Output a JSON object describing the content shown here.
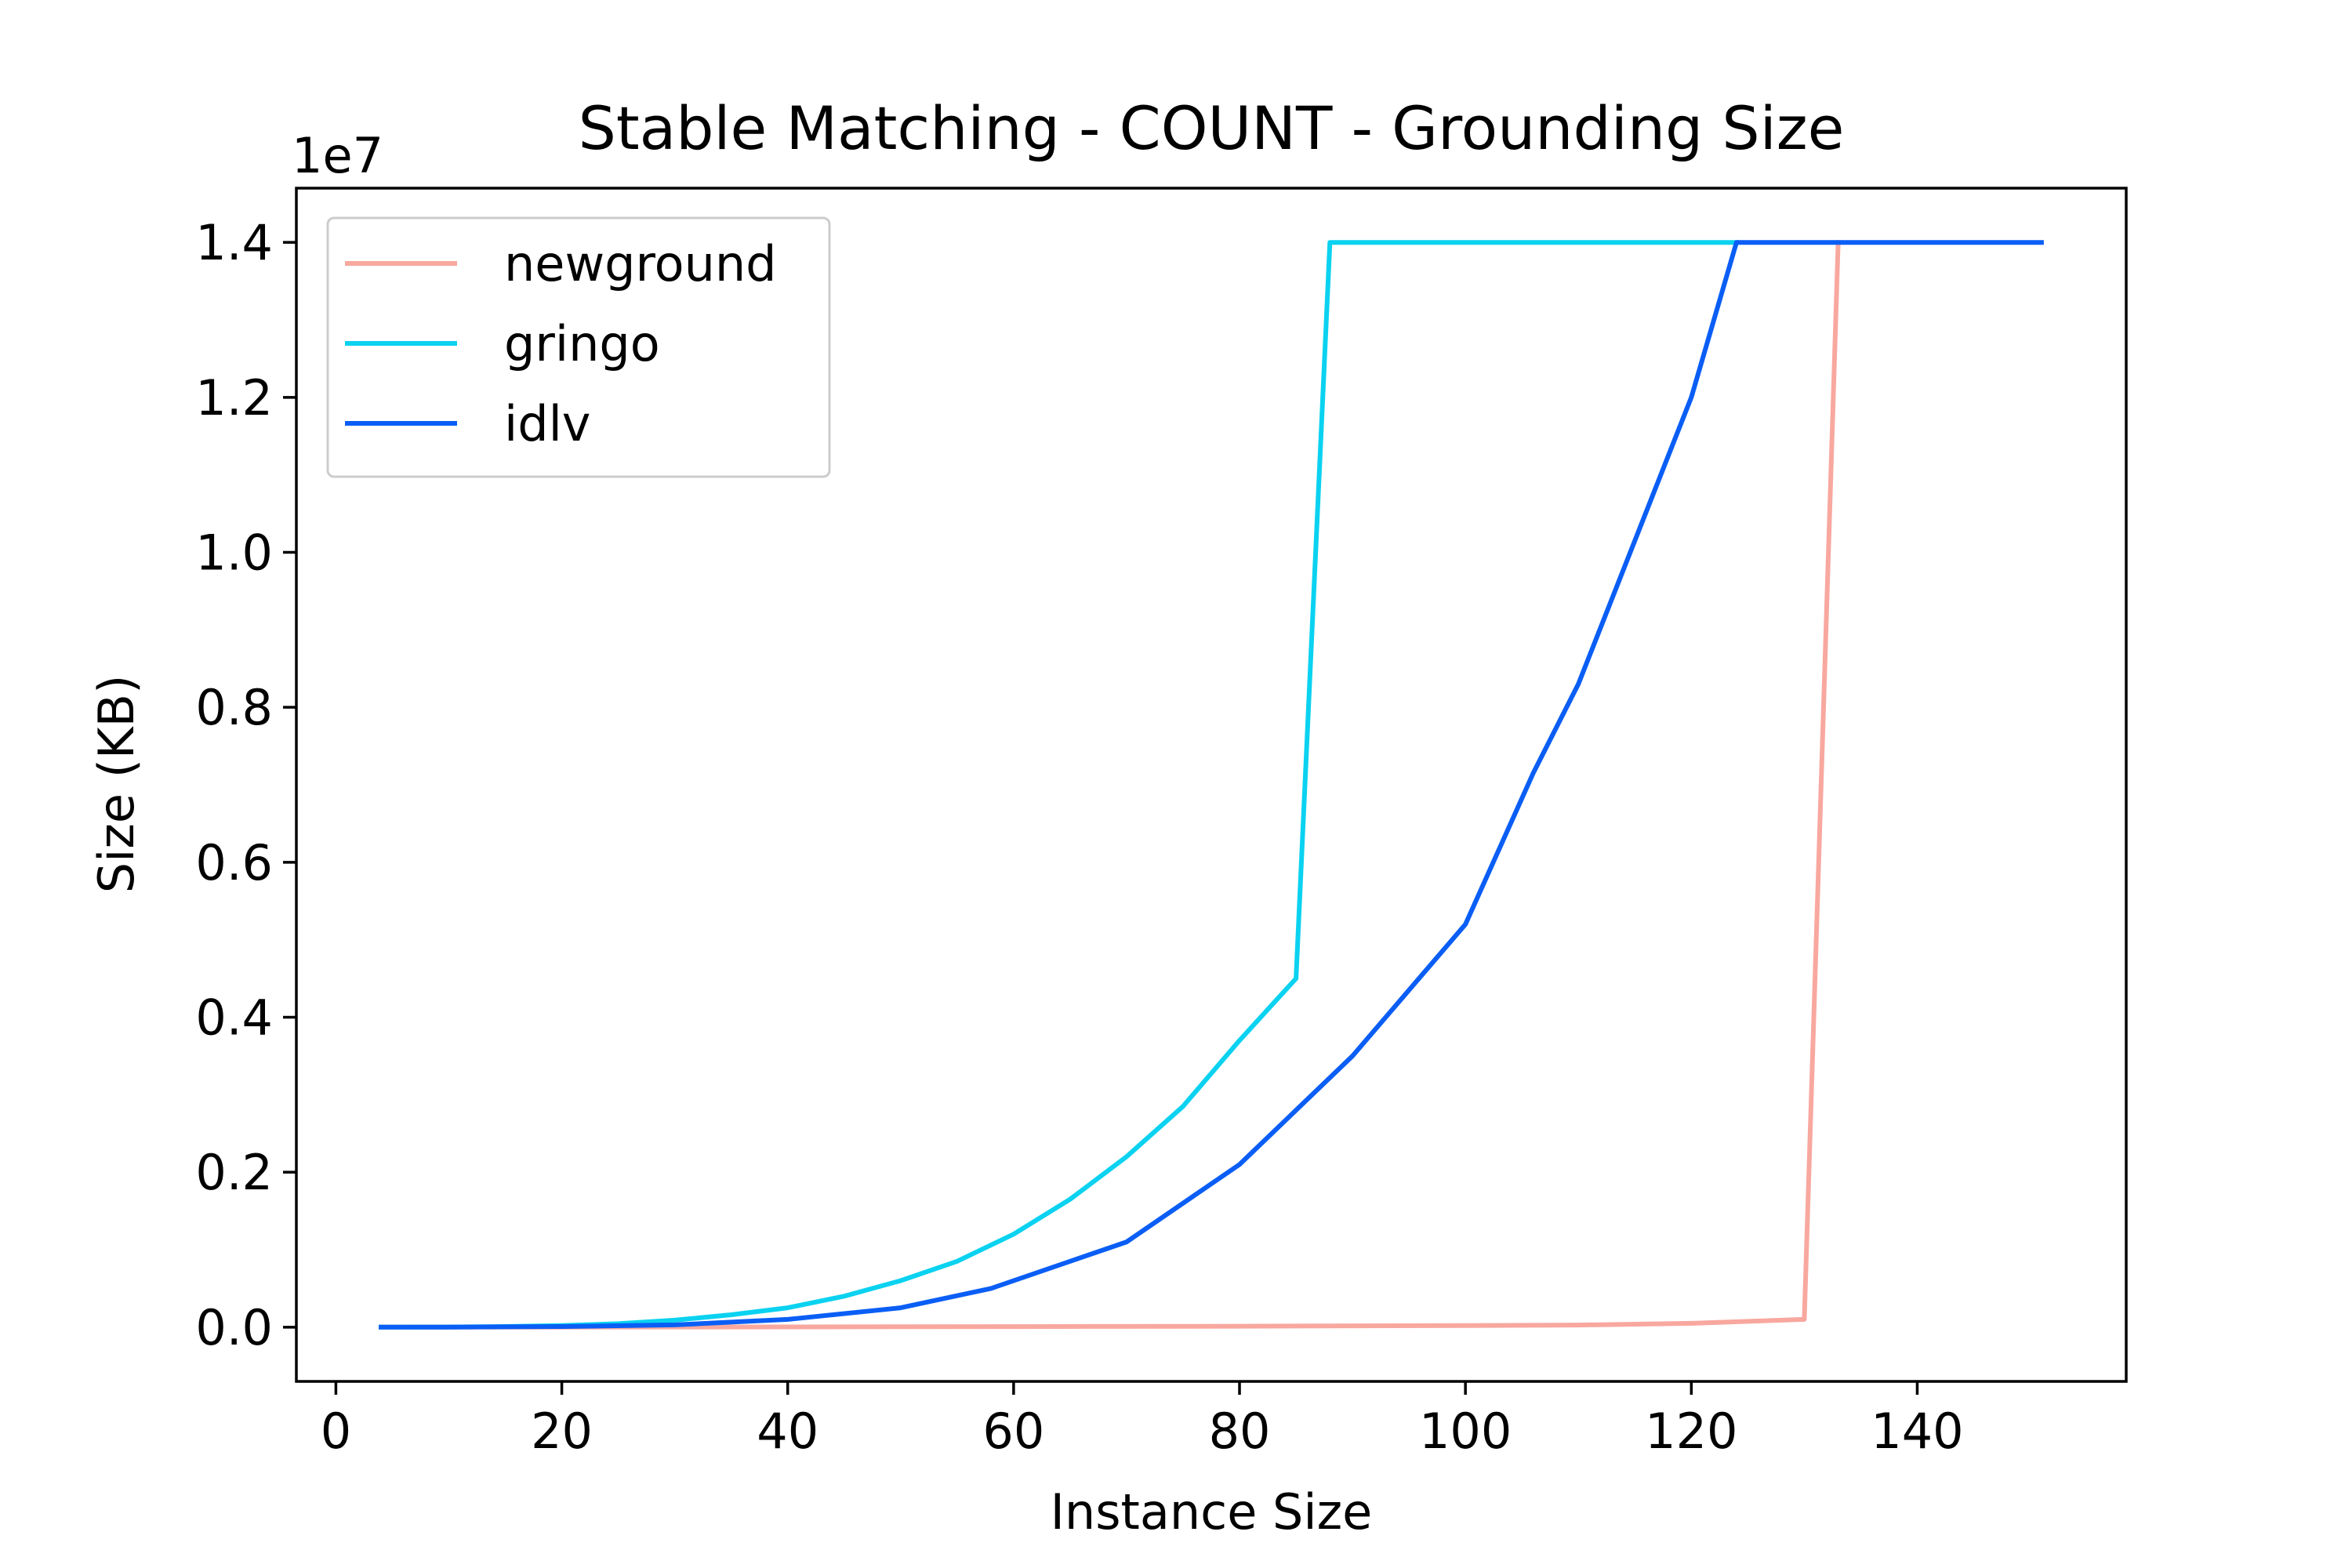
{
  "chart_data": {
    "type": "line",
    "title": "Stable Matching - COUNT - Grounding Size",
    "xlabel": "Instance Size",
    "ylabel": "Size (KB)",
    "y_offset_text": "1e7",
    "xlim": [
      -3.5,
      158.5
    ],
    "ylim": [
      -0.07,
      1.47
    ],
    "y_scale_multiplier": 10000000,
    "x_ticks": [
      0,
      20,
      40,
      60,
      80,
      100,
      120,
      140
    ],
    "x_tick_labels": [
      "0",
      "20",
      "40",
      "60",
      "80",
      "100",
      "120",
      "140"
    ],
    "y_ticks": [
      0.0,
      0.2,
      0.4,
      0.6,
      0.8,
      1.0,
      1.2,
      1.4
    ],
    "y_tick_labels": [
      "0.0",
      "0.2",
      "0.4",
      "0.6",
      "0.8",
      "1.0",
      "1.2",
      "1.4"
    ],
    "grid": false,
    "legend_position": "top-left",
    "series": [
      {
        "name": "newground",
        "color": "#f8a89f",
        "x": [
          4,
          20,
          40,
          60,
          80,
          100,
          110,
          120,
          130,
          133
        ],
        "y": [
          0,
          0.0001,
          0.0003,
          0.0007,
          0.0012,
          0.002,
          0.0028,
          0.005,
          0.01,
          1.4
        ]
      },
      {
        "name": "gringo",
        "color": "#0ad2f0",
        "x": [
          4,
          10,
          15,
          20,
          25,
          30,
          35,
          40,
          45,
          50,
          55,
          60,
          65,
          70,
          75,
          80,
          85,
          88,
          90,
          100,
          110,
          120,
          124
        ],
        "y": [
          0,
          0.0002,
          0.0008,
          0.002,
          0.0045,
          0.009,
          0.016,
          0.025,
          0.04,
          0.06,
          0.085,
          0.12,
          0.165,
          0.22,
          0.285,
          0.37,
          0.45,
          1.4,
          1.4,
          1.4,
          1.4,
          1.4,
          1.4
        ]
      },
      {
        "name": "idlv",
        "color": "#0a5ef5",
        "x": [
          4,
          10,
          20,
          30,
          40,
          50,
          58,
          65,
          70,
          80,
          90,
          100,
          106,
          110,
          120,
          124,
          130,
          140,
          151
        ],
        "y": [
          0,
          0.0001,
          0.0008,
          0.003,
          0.01,
          0.025,
          0.05,
          0.085,
          0.11,
          0.21,
          0.35,
          0.52,
          0.715,
          0.83,
          1.2,
          1.4,
          1.4,
          1.4,
          1.4
        ]
      }
    ]
  }
}
